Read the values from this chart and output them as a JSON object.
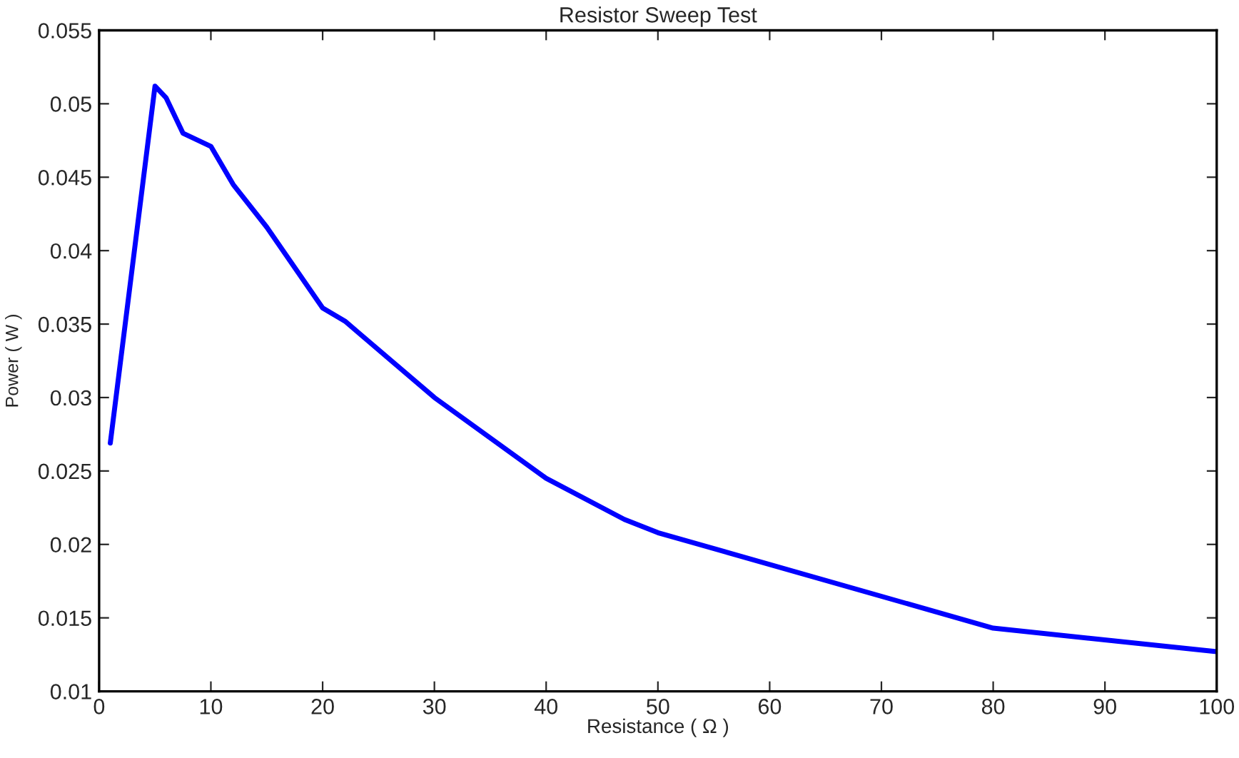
{
  "chart_data": {
    "type": "line",
    "title": "Resistor Sweep Test",
    "xlabel": "Resistance ( Ω )",
    "ylabel": "Power ( W )",
    "x": [
      1,
      5,
      6,
      7.5,
      10,
      12,
      15,
      20,
      22,
      30,
      40,
      47,
      50,
      80,
      100
    ],
    "series": [
      {
        "color": "#0000ff",
        "values": [
          0.0269,
          0.0512,
          0.0504,
          0.048,
          0.0471,
          0.0445,
          0.0416,
          0.0361,
          0.0352,
          0.03,
          0.0245,
          0.0217,
          0.0208,
          0.0143,
          0.0127
        ]
      }
    ],
    "xlim": [
      0,
      100
    ],
    "xticks": [
      0,
      10,
      20,
      30,
      40,
      50,
      60,
      70,
      80,
      90,
      100
    ],
    "ylim": [
      0.01,
      0.055
    ],
    "yticks": [
      0.01,
      0.015,
      0.02,
      0.025,
      0.03,
      0.035,
      0.04,
      0.045,
      0.05,
      0.055
    ],
    "grid": false,
    "legend": false,
    "marker": "none",
    "line_style": "solid"
  }
}
